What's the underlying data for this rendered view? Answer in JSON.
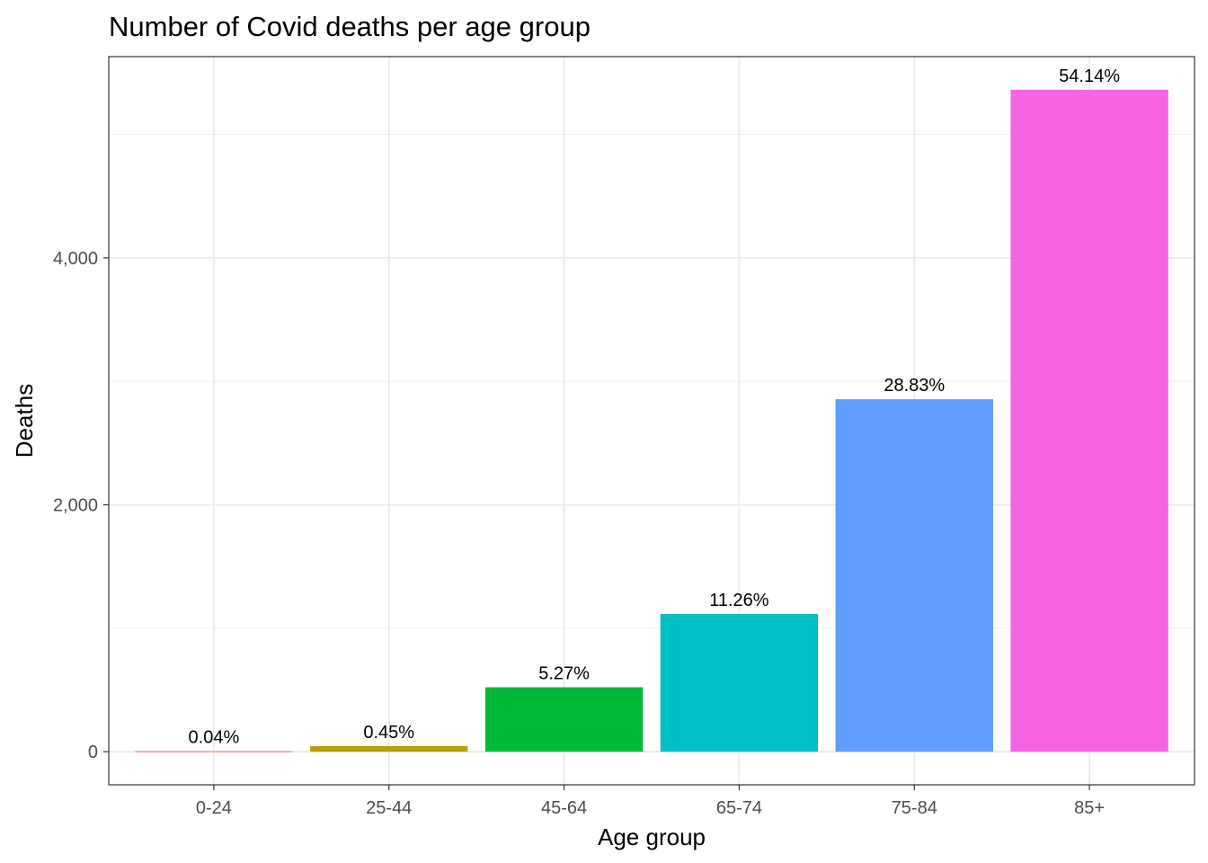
{
  "chart_data": {
    "type": "bar",
    "title": "Number of Covid deaths per age group",
    "xlabel": "Age group",
    "ylabel": "Deaths",
    "categories": [
      "0-24",
      "25-44",
      "45-64",
      "65-74",
      "75-84",
      "85+"
    ],
    "values": [
      4,
      45,
      522,
      1115,
      2855,
      5362
    ],
    "labels": [
      "0.04%",
      "0.45%",
      "5.27%",
      "11.26%",
      "28.83%",
      "54.14%"
    ],
    "colors": [
      "#F8766D",
      "#B79F00",
      "#00BA38",
      "#00BFC4",
      "#619CFF",
      "#F564E3"
    ],
    "ylim": [
      -268,
      5630
    ],
    "yticks": [
      0,
      2000,
      4000
    ],
    "ytick_labels": [
      "0",
      "2,000",
      "4,000"
    ],
    "grid": true,
    "legend": "none",
    "theme": "bw"
  }
}
